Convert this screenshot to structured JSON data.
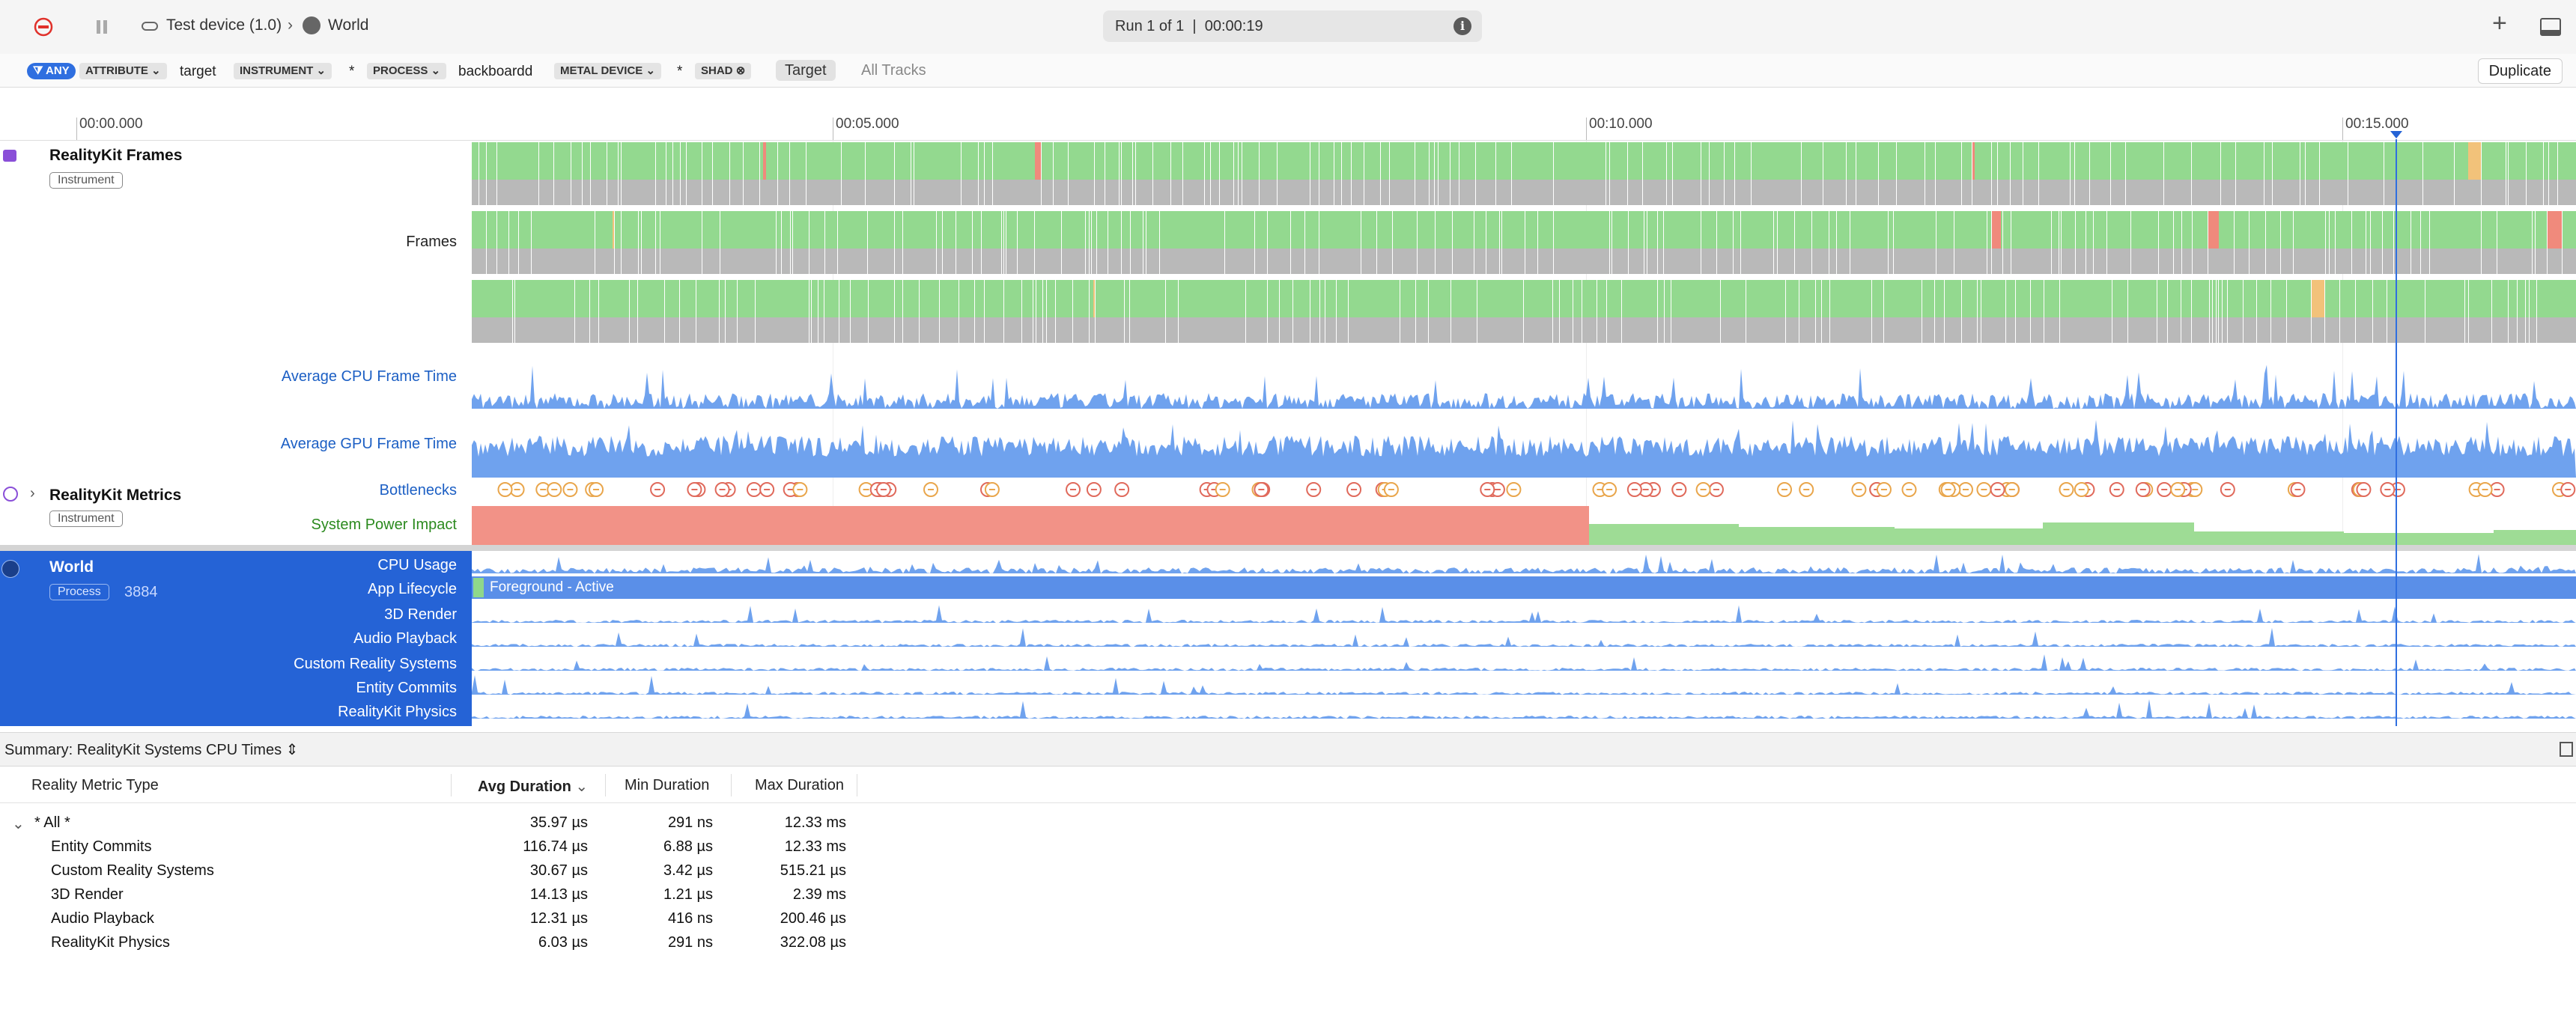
{
  "toolbar": {
    "device": "Test device (1.0)",
    "target": "World",
    "run": "Run 1 of 1",
    "sep": "|",
    "elapsed": "00:00:19",
    "info": "i",
    "add": "+"
  },
  "filters": {
    "any": "ANY",
    "attribute": "ATTRIBUTE",
    "attribute_value": "target",
    "instrument": "INSTRUMENT",
    "instrument_value": "*",
    "process": "PROCESS",
    "process_value": "backboardd",
    "metal": "METAL DEVICE",
    "metal_value": "*",
    "shad": "SHAD",
    "seg_target": "Target",
    "seg_all": "All Tracks",
    "duplicate": "Duplicate"
  },
  "ruler": {
    "ticks": [
      "00:00.000",
      "00:05.000",
      "00:10.000",
      "00:15.000"
    ]
  },
  "tracks": {
    "frames_group": "RealityKit Frames",
    "frames_badge": "Instrument",
    "frames_label": "Frames",
    "avg_cpu": "Average CPU Frame Time",
    "avg_gpu": "Average GPU Frame Time",
    "metrics_group": "RealityKit Metrics",
    "metrics_badge": "Instrument",
    "bottlenecks": "Bottlenecks",
    "power": "System Power Impact"
  },
  "world": {
    "title": "World",
    "badge": "Process",
    "pid": "3884",
    "cpu": "CPU Usage",
    "lifecycle": "App Lifecycle",
    "lifecycle_state": "Foreground - Active",
    "render": "3D Render",
    "audio": "Audio Playback",
    "custom": "Custom Reality Systems",
    "commits": "Entity Commits",
    "physics": "RealityKit Physics"
  },
  "summary": {
    "title": "Summary: RealityKit Systems CPU Times",
    "columns": [
      "Reality Metric Type",
      "Avg Duration",
      "Min Duration",
      "Max Duration"
    ],
    "rows": [
      {
        "name": "* All *",
        "avg": "35.97 µs",
        "min": "291 ns",
        "max": "12.33 ms"
      },
      {
        "name": "Entity Commits",
        "avg": "116.74 µs",
        "min": "6.88 µs",
        "max": "12.33 ms"
      },
      {
        "name": "Custom Reality Systems",
        "avg": "30.67 µs",
        "min": "3.42 µs",
        "max": "515.21 µs"
      },
      {
        "name": "3D Render",
        "avg": "14.13 µs",
        "min": "1.21 µs",
        "max": "2.39 ms"
      },
      {
        "name": "Audio Playback",
        "avg": "12.31 µs",
        "min": "416 ns",
        "max": "200.46 µs"
      },
      {
        "name": "RealityKit Physics",
        "avg": "6.03 µs",
        "min": "291 ns",
        "max": "322.08 µs"
      }
    ]
  },
  "colors": {
    "accent": "#2563d6",
    "frame_ok": "#93d98f",
    "frame_bad": "#f08a7c",
    "frame_warn": "#f2c27a",
    "power_high": "#f29287",
    "power_low": "#9edc95",
    "graph": "#6fa2ee"
  }
}
